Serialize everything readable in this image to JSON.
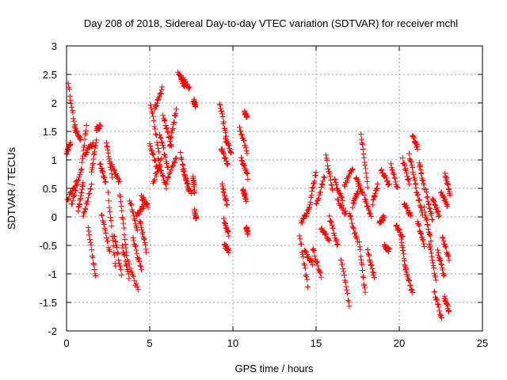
{
  "chart_data": {
    "type": "scatter",
    "title": "Day 208 of 2018, Sidereal Day-to-day VTEC variation (SDTVAR) for receiver mchl",
    "xlabel": "GPS time / hours",
    "ylabel": "SDTVAR / TECUs",
    "xlim": [
      0,
      25
    ],
    "ylim": [
      -2,
      3
    ],
    "x_ticks": [
      0,
      5,
      10,
      15,
      20,
      25
    ],
    "x_tick_labels": [
      "0",
      "5",
      "10",
      "15",
      "20",
      "25"
    ],
    "y_ticks": [
      -2,
      -1.5,
      -1,
      -0.5,
      0,
      0.5,
      1,
      1.5,
      2,
      2.5,
      3
    ],
    "y_tick_labels": [
      "-2",
      "-1.5",
      "-1",
      "-0.5",
      "0",
      "0.5",
      "1",
      "1.5",
      "2",
      "2.5",
      "3"
    ],
    "grid": true,
    "marker": "+",
    "marker_color": "#ff0000",
    "series": [
      {
        "name": "SDTVAR",
        "segments": [
          {
            "x": [
              0.0,
              0.25
            ],
            "y": [
              1.1,
              1.3
            ]
          },
          {
            "x": [
              0.05,
              0.6
            ],
            "y": [
              0.3,
              0.6
            ]
          },
          {
            "x": [
              0.1,
              0.55
            ],
            "y": [
              2.35,
              1.45
            ]
          },
          {
            "x": [
              0.3,
              0.8
            ],
            "y": [
              0.2,
              0.75
            ]
          },
          {
            "x": [
              0.5,
              0.85
            ],
            "y": [
              1.6,
              1.35
            ]
          },
          {
            "x": [
              0.7,
              1.0
            ],
            "y": [
              0.1,
              0.6
            ]
          },
          {
            "x": [
              0.85,
              1.2
            ],
            "y": [
              0.75,
              1.6
            ]
          },
          {
            "x": [
              1.0,
              1.5
            ],
            "y": [
              0.0,
              0.55
            ]
          },
          {
            "x": [
              1.1,
              1.6
            ],
            "y": [
              1.1,
              1.3
            ]
          },
          {
            "x": [
              1.3,
              1.75
            ],
            "y": [
              -0.2,
              -1.05
            ]
          },
          {
            "x": [
              1.5,
              1.8
            ],
            "y": [
              0.8,
              1.35
            ]
          },
          {
            "x": [
              1.8,
              2.05
            ],
            "y": [
              1.55,
              1.6
            ]
          },
          {
            "x": [
              2.0,
              2.35
            ],
            "y": [
              0.95,
              0.6
            ]
          },
          {
            "x": [
              2.1,
              2.6
            ],
            "y": [
              0.05,
              -0.6
            ]
          },
          {
            "x": [
              2.4,
              2.75
            ],
            "y": [
              1.3,
              0.7
            ]
          },
          {
            "x": [
              2.5,
              2.95
            ],
            "y": [
              0.4,
              -0.9
            ]
          },
          {
            "x": [
              2.7,
              3.2
            ],
            "y": [
              0.9,
              0.6
            ]
          },
          {
            "x": [
              2.85,
              3.3
            ],
            "y": [
              -0.3,
              -1.0
            ]
          },
          {
            "x": [
              3.2,
              3.6
            ],
            "y": [
              0.4,
              -0.6
            ]
          },
          {
            "x": [
              3.35,
              3.75
            ],
            "y": [
              -0.5,
              -1.05
            ]
          },
          {
            "x": [
              3.6,
              4.3
            ],
            "y": [
              -0.7,
              -1.3
            ]
          },
          {
            "x": [
              3.8,
              4.25
            ],
            "y": [
              0.3,
              -0.25
            ]
          },
          {
            "x": [
              4.0,
              4.5
            ],
            "y": [
              -0.35,
              -0.95
            ]
          },
          {
            "x": [
              4.2,
              4.65
            ],
            "y": [
              0.0,
              0.2
            ]
          },
          {
            "x": [
              4.4,
              4.8
            ],
            "y": [
              -0.05,
              -0.6
            ]
          },
          {
            "x": [
              4.5,
              4.9
            ],
            "y": [
              0.35,
              0.2
            ]
          },
          {
            "x": [
              5.0,
              5.5
            ],
            "y": [
              1.3,
              0.8
            ]
          },
          {
            "x": [
              5.05,
              5.55
            ],
            "y": [
              2.0,
              1.15
            ]
          },
          {
            "x": [
              5.2,
              5.7
            ],
            "y": [
              0.6,
              1.0
            ]
          },
          {
            "x": [
              5.3,
              5.75
            ],
            "y": [
              1.9,
              2.25
            ]
          },
          {
            "x": [
              5.5,
              6.0
            ],
            "y": [
              1.0,
              0.5
            ]
          },
          {
            "x": [
              5.6,
              6.1
            ],
            "y": [
              1.45,
              0.85
            ]
          },
          {
            "x": [
              5.8,
              6.3
            ],
            "y": [
              1.8,
              1.25
            ]
          },
          {
            "x": [
              6.0,
              6.6
            ],
            "y": [
              0.6,
              1.05
            ]
          },
          {
            "x": [
              6.2,
              6.6
            ],
            "y": [
              1.25,
              1.9
            ]
          },
          {
            "x": [
              6.7,
              7.1
            ],
            "y": [
              2.55,
              2.3
            ]
          },
          {
            "x": [
              6.9,
              7.4
            ],
            "y": [
              2.45,
              2.25
            ]
          },
          {
            "x": [
              6.85,
              7.35
            ],
            "y": [
              1.1,
              0.45
            ]
          },
          {
            "x": [
              7.0,
              7.5
            ],
            "y": [
              0.8,
              0.4
            ]
          },
          {
            "x": [
              7.6,
              7.7
            ],
            "y": [
              0.7,
              0.45
            ]
          },
          {
            "x": [
              7.65,
              7.75
            ],
            "y": [
              2.05,
              1.95
            ]
          },
          {
            "x": [
              7.7,
              7.8
            ],
            "y": [
              0.1,
              -0.05
            ]
          },
          {
            "x": [
              9.2,
              9.6
            ],
            "y": [
              2.0,
              1.4
            ]
          },
          {
            "x": [
              9.3,
              9.7
            ],
            "y": [
              1.2,
              0.9
            ]
          },
          {
            "x": [
              9.35,
              9.65
            ],
            "y": [
              0.55,
              0.2
            ]
          },
          {
            "x": [
              9.45,
              9.75
            ],
            "y": [
              -0.05,
              -0.3
            ]
          },
          {
            "x": [
              9.5,
              9.75
            ],
            "y": [
              -0.5,
              -0.6
            ]
          },
          {
            "x": [
              9.55,
              9.9
            ],
            "y": [
              1.35,
              1.15
            ]
          },
          {
            "x": [
              10.4,
              10.85
            ],
            "y": [
              1.55,
              1.15
            ]
          },
          {
            "x": [
              10.5,
              10.9
            ],
            "y": [
              1.0,
              0.7
            ]
          },
          {
            "x": [
              10.6,
              10.8
            ],
            "y": [
              0.5,
              0.3
            ]
          },
          {
            "x": [
              10.7,
              10.85
            ],
            "y": [
              1.85,
              1.75
            ]
          },
          {
            "x": [
              10.8,
              10.9
            ],
            "y": [
              -0.18,
              -0.28
            ]
          },
          {
            "x": [
              14.0,
              14.5
            ],
            "y": [
              -0.3,
              -1.2
            ]
          },
          {
            "x": [
              14.1,
              14.6
            ],
            "y": [
              -0.1,
              0.15
            ]
          },
          {
            "x": [
              14.3,
              14.8
            ],
            "y": [
              -0.6,
              -0.8
            ]
          },
          {
            "x": [
              14.6,
              15.0
            ],
            "y": [
              0.2,
              0.8
            ]
          },
          {
            "x": [
              14.8,
              15.3
            ],
            "y": [
              -0.55,
              -1.05
            ]
          },
          {
            "x": [
              15.0,
              15.5
            ],
            "y": [
              0.2,
              0.7
            ]
          },
          {
            "x": [
              15.3,
              15.8
            ],
            "y": [
              -0.2,
              -0.4
            ]
          },
          {
            "x": [
              15.6,
              16.0
            ],
            "y": [
              1.05,
              0.45
            ]
          },
          {
            "x": [
              15.8,
              16.3
            ],
            "y": [
              0.0,
              -0.5
            ]
          },
          {
            "x": [
              16.1,
              16.6
            ],
            "y": [
              0.65,
              0.3
            ]
          },
          {
            "x": [
              16.3,
              16.8
            ],
            "y": [
              0.3,
              0.05
            ]
          },
          {
            "x": [
              16.5,
              17.0
            ],
            "y": [
              -0.75,
              -1.55
            ]
          },
          {
            "x": [
              16.7,
              17.2
            ],
            "y": [
              0.55,
              0.85
            ]
          },
          {
            "x": [
              17.0,
              17.5
            ],
            "y": [
              0.05,
              -0.45
            ]
          },
          {
            "x": [
              17.2,
              17.55
            ],
            "y": [
              0.2,
              0.5
            ]
          },
          {
            "x": [
              17.4,
              17.8
            ],
            "y": [
              0.7,
              0.4
            ]
          },
          {
            "x": [
              17.6,
              17.95
            ],
            "y": [
              -0.45,
              -1.35
            ]
          },
          {
            "x": [
              17.7,
              18.1
            ],
            "y": [
              1.45,
              0.55
            ]
          },
          {
            "x": [
              17.9,
              18.3
            ],
            "y": [
              0.35,
              0.0
            ]
          },
          {
            "x": [
              18.1,
              18.5
            ],
            "y": [
              -0.6,
              -1.05
            ]
          },
          {
            "x": [
              18.4,
              18.7
            ],
            "y": [
              0.25,
              0.55
            ]
          },
          {
            "x": [
              18.8,
              19.1
            ],
            "y": [
              -0.1,
              0.0
            ]
          },
          {
            "x": [
              18.9,
              19.4
            ],
            "y": [
              0.85,
              0.55
            ]
          },
          {
            "x": [
              19.1,
              19.4
            ],
            "y": [
              -0.5,
              -0.6
            ]
          },
          {
            "x": [
              19.5,
              19.9
            ],
            "y": [
              0.9,
              0.5
            ]
          },
          {
            "x": [
              19.8,
              20.2
            ],
            "y": [
              -0.15,
              -0.35
            ]
          },
          {
            "x": [
              20.1,
              20.4
            ],
            "y": [
              -0.35,
              -0.95
            ]
          },
          {
            "x": [
              20.2,
              20.6
            ],
            "y": [
              1.0,
              0.6
            ]
          },
          {
            "x": [
              20.3,
              20.7
            ],
            "y": [
              0.25,
              0.0
            ]
          },
          {
            "x": [
              20.4,
              20.8
            ],
            "y": [
              -0.9,
              -1.35
            ]
          },
          {
            "x": [
              20.6,
              21.0
            ],
            "y": [
              1.1,
              0.55
            ]
          },
          {
            "x": [
              20.8,
              21.1
            ],
            "y": [
              1.45,
              1.2
            ]
          },
          {
            "x": [
              21.0,
              21.4
            ],
            "y": [
              0.5,
              0.05
            ]
          },
          {
            "x": [
              21.1,
              21.5
            ],
            "y": [
              -0.1,
              -0.5
            ]
          },
          {
            "x": [
              21.2,
              21.5
            ],
            "y": [
              0.95,
              0.5
            ]
          },
          {
            "x": [
              21.5,
              21.9
            ],
            "y": [
              0.15,
              -0.4
            ]
          },
          {
            "x": [
              21.6,
              22.0
            ],
            "y": [
              0.45,
              -0.05
            ]
          },
          {
            "x": [
              21.8,
              22.2
            ],
            "y": [
              -0.45,
              -1.1
            ]
          },
          {
            "x": [
              22.0,
              22.4
            ],
            "y": [
              0.35,
              0.0
            ]
          },
          {
            "x": [
              22.1,
              22.55
            ],
            "y": [
              -1.3,
              -1.8
            ]
          },
          {
            "x": [
              22.3,
              22.7
            ],
            "y": [
              -0.6,
              -1.05
            ]
          },
          {
            "x": [
              22.5,
              22.9
            ],
            "y": [
              0.45,
              0.2
            ]
          },
          {
            "x": [
              22.6,
              23.0
            ],
            "y": [
              -0.35,
              -0.75
            ]
          },
          {
            "x": [
              22.7,
              23.0
            ],
            "y": [
              -1.4,
              -1.65
            ]
          },
          {
            "x": [
              22.75,
              23.05
            ],
            "y": [
              0.75,
              0.4
            ]
          }
        ]
      }
    ]
  }
}
